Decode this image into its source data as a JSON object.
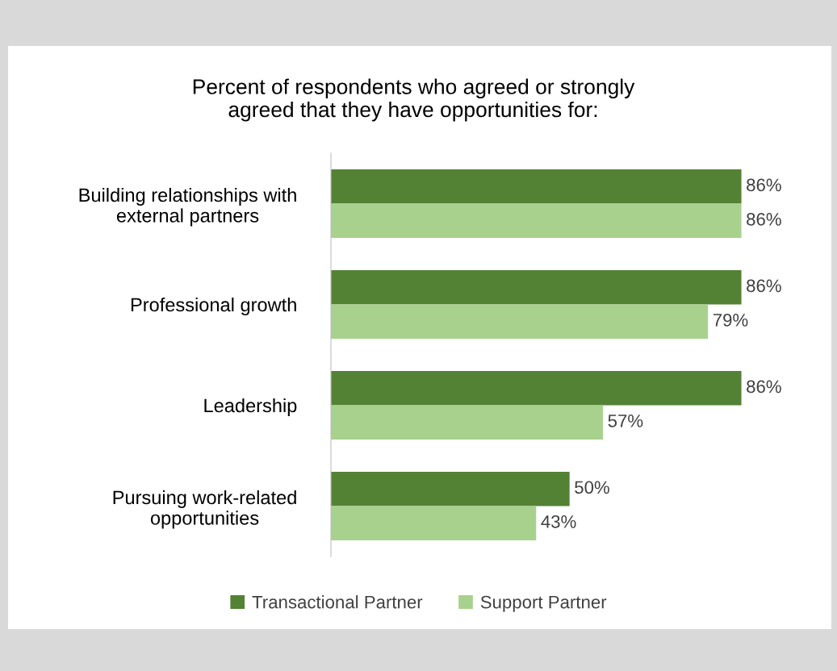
{
  "chart_data": {
    "type": "bar",
    "orientation": "horizontal",
    "title": "Percent of respondents who agreed or strongly\nagreed that they have opportunities for:",
    "categories": [
      "Building relationships with\nexternal partners",
      "Professional growth",
      "Leadership",
      "Pursuing work-related\nopportunities"
    ],
    "series": [
      {
        "name": "Transactional Partner",
        "color": "#548235",
        "values": [
          86,
          86,
          86,
          50
        ],
        "value_labels": [
          "86%",
          "86%",
          "86%",
          "50%"
        ]
      },
      {
        "name": "Support Partner",
        "color": "#a9d18e",
        "values": [
          86,
          79,
          57,
          43
        ],
        "value_labels": [
          "86%",
          "79%",
          "57%",
          "43%"
        ]
      }
    ],
    "tick_labels": "y",
    "grid": false,
    "legend": "bottom"
  }
}
